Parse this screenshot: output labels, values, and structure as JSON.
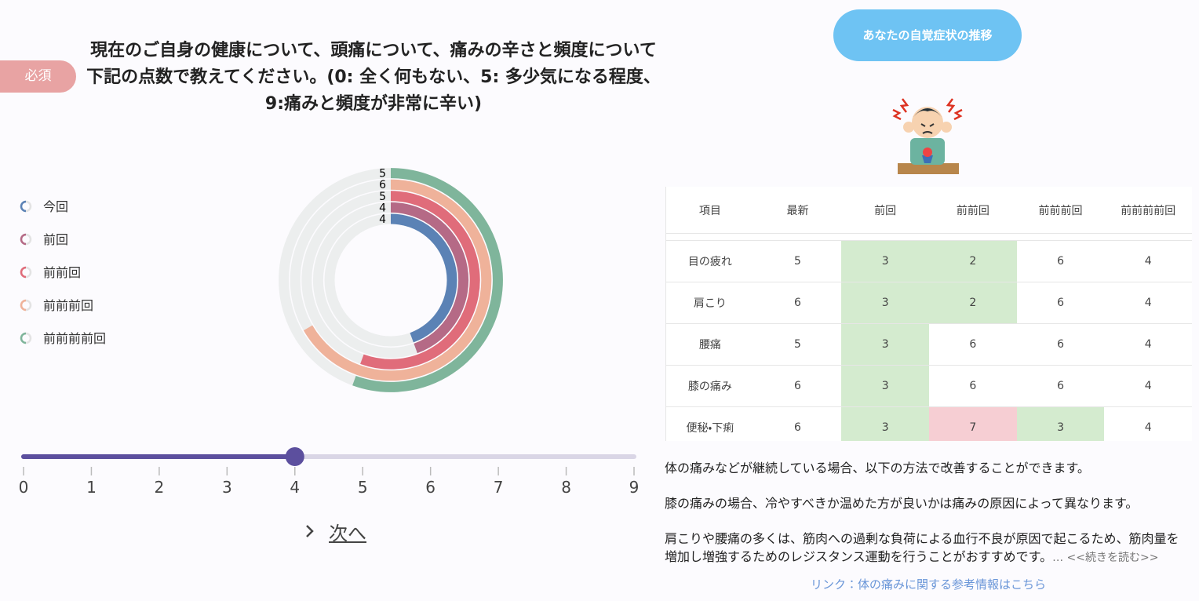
{
  "required_badge": "必須",
  "question": "現在のご自身の健康について、頭痛について、痛みの辛さと頻度について下記の点数で教えてください。(0: 全く何もない、5: 多少気になる程度、9:痛みと頻度が非常に辛い)",
  "chart_data": {
    "type": "radial-bar",
    "rlim": [
      0,
      9
    ],
    "series": [
      {
        "name": "今回",
        "color": "#5b82b5",
        "value": 4
      },
      {
        "name": "前回",
        "color": "#b56a86",
        "value": 4
      },
      {
        "name": "前前回",
        "color": "#e06c7a",
        "value": 5
      },
      {
        "name": "前前前回",
        "color": "#efb29a",
        "value": 6
      },
      {
        "name": "前前前前回",
        "color": "#7fb59b",
        "value": 5
      }
    ]
  },
  "slider": {
    "min": 0,
    "max": 9,
    "ticks": [
      0,
      1,
      2,
      3,
      4,
      5,
      6,
      7,
      8,
      9
    ],
    "value": 4
  },
  "next_button": "次へ",
  "trend_button": "あなたの自覚症状の推移",
  "table": {
    "header": [
      "項目",
      "最新",
      "前回",
      "前前回",
      "前前前回",
      "前前前前回"
    ],
    "rows": [
      {
        "item": "目の疲れ",
        "values": [
          5,
          3,
          2,
          6,
          4
        ],
        "colors": [
          null,
          "#d4ebcf",
          "#d4ebcf",
          null,
          null
        ]
      },
      {
        "item": "肩こり",
        "values": [
          6,
          3,
          2,
          6,
          4
        ],
        "colors": [
          null,
          "#d4ebcf",
          "#d4ebcf",
          null,
          null
        ]
      },
      {
        "item": "腰痛",
        "values": [
          5,
          3,
          6,
          6,
          4
        ],
        "colors": [
          null,
          "#d4ebcf",
          null,
          null,
          null
        ]
      },
      {
        "item": "膝の痛み",
        "values": [
          6,
          3,
          6,
          6,
          4
        ],
        "colors": [
          null,
          "#d4ebcf",
          null,
          null,
          null
        ]
      },
      {
        "item": "便秘・下痢",
        "values": [
          6,
          3,
          7,
          3,
          4
        ],
        "colors": [
          null,
          "#d4ebcf",
          "#f6ced3",
          "#d4ebcf",
          null
        ]
      }
    ]
  },
  "paragraphs": [
    "体の痛みなどが継続している場合、以下の方法で改善することができます。",
    "膝の痛みの場合、冷やすべきか温めた方が良いかは痛みの原因によって異なります。",
    "肩こりや腰痛の多くは、筋肉への過剰な負荷による血行不良が原因で起こるため、筋肉量を増加し増強するためのレジスタンス運動を行うことがおすすめです。"
  ],
  "read_more": "… <<続きを読む>>",
  "link": "リンク：体の痛みに関する参考情報はこちら"
}
